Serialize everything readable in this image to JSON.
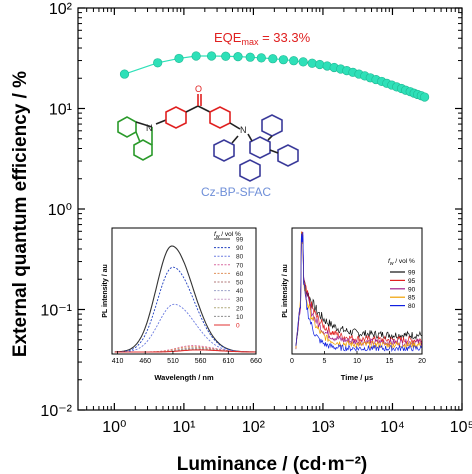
{
  "chart_data": [
    {
      "type": "scatter",
      "xlabel": "Luminance / (cd·m⁻²)",
      "ylabel": "External quantum efficiency / %",
      "xscale": "log",
      "yscale": "log",
      "xlim": [
        0.3,
        100000
      ],
      "ylim": [
        0.01,
        100
      ],
      "xticks": [
        "10⁰",
        "10¹",
        "10²",
        "10³",
        "10⁴",
        "10⁵"
      ],
      "yticks": [
        "10⁻²",
        "10⁻¹",
        "10⁰",
        "10¹",
        "10²"
      ],
      "annotation": {
        "prefix": "EQE",
        "sub": "max",
        "suffix": " = 33.3%"
      },
      "molecule_label": "Cz-BP-SFAC",
      "series": [
        {
          "color": "#2ee0b8",
          "x": [
            1.4,
            4.2,
            8.5,
            15,
            25,
            40,
            60,
            90,
            130,
            190,
            270,
            380,
            520,
            700,
            900,
            1150,
            1450,
            1800,
            2200,
            2700,
            3300,
            4000,
            4800,
            5800,
            7000,
            8300,
            9800,
            11500,
            13500,
            15500,
            18000,
            20500,
            23000,
            26000,
            29000
          ],
          "y": [
            22,
            28.5,
            31.5,
            33.3,
            33.3,
            33.1,
            32.8,
            32.4,
            31.9,
            31.3,
            30.6,
            29.9,
            29.1,
            28.2,
            27.4,
            26.5,
            25.6,
            24.7,
            23.8,
            22.9,
            22.0,
            21.1,
            20.2,
            19.4,
            18.6,
            17.8,
            17.1,
            16.4,
            15.8,
            15.2,
            14.7,
            14.2,
            13.8,
            13.4,
            13.0
          ]
        }
      ]
    },
    {
      "type": "line",
      "xlabel": "Wavelength / nm",
      "ylabel": "PL intensity / au",
      "xlim": [
        400,
        660
      ],
      "xticks": [
        410,
        460,
        510,
        560,
        610,
        660
      ],
      "legend_title": "f_w / vol %",
      "legend_title_parts": {
        "main": "f",
        "sub": "w",
        "rest": " / vol %"
      },
      "legend_position": "top-right",
      "series": [
        {
          "name": "99",
          "color": "#333333",
          "peak": 1.0,
          "center": 508
        },
        {
          "name": "90",
          "color": "#1f3fbf",
          "peak": 0.8,
          "center": 510
        },
        {
          "name": "80",
          "color": "#6d7de0",
          "peak": 0.45,
          "center": 512
        },
        {
          "name": "70",
          "color": "#d96aa0",
          "peak": 0.06,
          "center": 545
        },
        {
          "name": "60",
          "color": "#e0905a",
          "peak": 0.05,
          "center": 545
        },
        {
          "name": "50",
          "color": "#b07878",
          "peak": 0.04,
          "center": 550
        },
        {
          "name": "40",
          "color": "#9aa0c8",
          "peak": 0.035,
          "center": 550
        },
        {
          "name": "30",
          "color": "#c8a0c8",
          "peak": 0.03,
          "center": 552
        },
        {
          "name": "20",
          "color": "#b0a878",
          "peak": 0.03,
          "center": 552
        },
        {
          "name": "10",
          "color": "#8c8c8c",
          "peak": 0.025,
          "center": 555
        },
        {
          "name": "0",
          "color": "#e03030",
          "peak": 0.02,
          "center": 555
        }
      ]
    },
    {
      "type": "line",
      "xlabel": "Time / μs",
      "ylabel": "PL intensity / au",
      "xlim": [
        0,
        20
      ],
      "xticks": [
        0,
        5,
        10,
        15,
        20
      ],
      "legend_title": "f_w / vol %",
      "legend_title_parts": {
        "main": "f",
        "sub": "w",
        "rest": " / vol %"
      },
      "legend_position": "top-right",
      "series": [
        {
          "name": "99",
          "color": "#111111",
          "tau": 2.6,
          "floor": 0.14
        },
        {
          "name": "95",
          "color": "#e02020",
          "tau": 2.2,
          "floor": 0.1
        },
        {
          "name": "90",
          "color": "#a0208c",
          "tau": 1.9,
          "floor": 0.08
        },
        {
          "name": "85",
          "color": "#f0a000",
          "tau": 1.6,
          "floor": 0.06
        },
        {
          "name": "80",
          "color": "#1020e0",
          "tau": 1.2,
          "floor": 0.03
        }
      ]
    }
  ]
}
